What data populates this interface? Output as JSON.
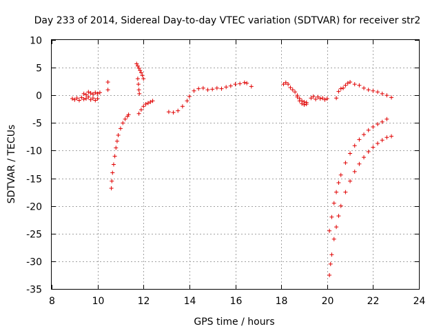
{
  "chart_data": {
    "type": "scatter",
    "title": "Day 233 of 2014, Sidereal Day-to-day VTEC variation (SDTVAR) for receiver str2",
    "xlabel": "GPS time / hours",
    "ylabel": "SDTVAR / TECUs",
    "xlim": [
      8,
      24
    ],
    "ylim": [
      -35,
      10
    ],
    "xticks": [
      8,
      10,
      12,
      14,
      16,
      18,
      20,
      22,
      24
    ],
    "yticks": [
      10,
      5,
      0,
      -5,
      -10,
      -15,
      -20,
      -25,
      -30,
      -35
    ],
    "grid": true,
    "marker": "plus",
    "color": "#e00000",
    "series": [
      {
        "name": "seg-a",
        "points": [
          [
            8.9,
            -0.6
          ],
          [
            9.0,
            -0.8
          ],
          [
            9.1,
            -0.5
          ],
          [
            9.2,
            -0.9
          ],
          [
            9.3,
            -0.4
          ],
          [
            9.4,
            -0.7
          ],
          [
            9.5,
            -0.6
          ],
          [
            9.6,
            -0.3
          ],
          [
            9.7,
            -0.8
          ],
          [
            9.8,
            -0.5
          ],
          [
            9.9,
            -0.9
          ],
          [
            10.0,
            -0.6
          ]
        ]
      },
      {
        "name": "seg-b",
        "points": [
          [
            9.4,
            0.3
          ],
          [
            9.5,
            0.1
          ],
          [
            9.6,
            0.6
          ],
          [
            9.7,
            0.4
          ],
          [
            9.8,
            0.2
          ],
          [
            9.9,
            0.5
          ],
          [
            10.0,
            0.3
          ],
          [
            10.1,
            0.5
          ]
        ]
      },
      {
        "name": "seg-c",
        "points": [
          [
            10.45,
            2.4
          ],
          [
            10.45,
            1.0
          ]
        ]
      },
      {
        "name": "seg-d",
        "points": [
          [
            10.6,
            -16.8
          ],
          [
            10.62,
            -15.5
          ],
          [
            10.65,
            -14.0
          ],
          [
            10.7,
            -12.5
          ],
          [
            10.75,
            -11.0
          ],
          [
            10.8,
            -9.5
          ],
          [
            10.85,
            -8.3
          ],
          [
            10.9,
            -7.2
          ],
          [
            11.0,
            -6.0
          ],
          [
            11.1,
            -5.0
          ],
          [
            11.2,
            -4.3
          ],
          [
            11.3,
            -3.8
          ],
          [
            11.35,
            -3.5
          ]
        ]
      },
      {
        "name": "seg-e",
        "points": [
          [
            11.7,
            5.7
          ],
          [
            11.75,
            5.3
          ],
          [
            11.8,
            4.9
          ],
          [
            11.85,
            4.5
          ],
          [
            11.9,
            4.1
          ],
          [
            11.95,
            3.6
          ],
          [
            12.0,
            3.0
          ]
        ]
      },
      {
        "name": "seg-f",
        "points": [
          [
            11.75,
            3.0
          ],
          [
            11.78,
            2.0
          ],
          [
            11.8,
            1.0
          ],
          [
            11.82,
            0.3
          ]
        ]
      },
      {
        "name": "seg-g",
        "points": [
          [
            11.8,
            -3.3
          ],
          [
            11.9,
            -2.6
          ],
          [
            12.0,
            -2.0
          ],
          [
            12.1,
            -1.6
          ],
          [
            12.2,
            -1.4
          ],
          [
            12.3,
            -1.2
          ],
          [
            12.4,
            -1.0
          ]
        ]
      },
      {
        "name": "seg-h",
        "points": [
          [
            13.1,
            -3.0
          ],
          [
            13.3,
            -3.1
          ],
          [
            13.5,
            -2.8
          ],
          [
            13.7,
            -2.0
          ],
          [
            13.9,
            -1.0
          ],
          [
            14.0,
            -0.2
          ],
          [
            14.2,
            0.8
          ],
          [
            14.4,
            1.2
          ],
          [
            14.6,
            1.3
          ],
          [
            14.8,
            1.0
          ],
          [
            15.0,
            1.1
          ],
          [
            15.2,
            1.3
          ],
          [
            15.4,
            1.2
          ],
          [
            15.6,
            1.5
          ],
          [
            15.8,
            1.7
          ],
          [
            16.0,
            2.0
          ],
          [
            16.2,
            2.1
          ],
          [
            16.4,
            2.3
          ],
          [
            16.5,
            2.2
          ],
          [
            16.7,
            1.6
          ]
        ]
      },
      {
        "name": "seg-i",
        "points": [
          [
            18.1,
            2.0
          ],
          [
            18.2,
            2.3
          ],
          [
            18.3,
            2.0
          ],
          [
            18.4,
            1.4
          ],
          [
            18.5,
            1.0
          ],
          [
            18.6,
            0.6
          ],
          [
            18.7,
            0.0
          ],
          [
            18.8,
            -0.6
          ],
          [
            18.9,
            -1.0
          ],
          [
            19.0,
            -1.2
          ],
          [
            19.1,
            -1.3
          ]
        ]
      },
      {
        "name": "seg-j",
        "points": [
          [
            18.7,
            -0.3
          ],
          [
            18.8,
            -1.0
          ],
          [
            18.9,
            -1.5
          ],
          [
            19.0,
            -1.7
          ],
          [
            19.1,
            -1.6
          ]
        ]
      },
      {
        "name": "seg-k",
        "points": [
          [
            19.3,
            -0.5
          ],
          [
            19.4,
            -0.2
          ],
          [
            19.5,
            -0.7
          ],
          [
            19.6,
            -0.3
          ],
          [
            19.7,
            -0.6
          ],
          [
            19.8,
            -0.5
          ],
          [
            19.9,
            -0.8
          ],
          [
            20.0,
            -0.6
          ]
        ]
      },
      {
        "name": "seg-l",
        "points": [
          [
            20.4,
            -0.5
          ],
          [
            20.5,
            0.7
          ],
          [
            20.6,
            1.2
          ],
          [
            20.7,
            1.3
          ],
          [
            20.8,
            1.8
          ],
          [
            20.9,
            2.2
          ],
          [
            21.0,
            2.4
          ],
          [
            21.2,
            2.0
          ],
          [
            21.4,
            1.8
          ],
          [
            21.6,
            1.3
          ],
          [
            21.8,
            1.0
          ],
          [
            22.0,
            0.8
          ],
          [
            22.2,
            0.6
          ],
          [
            22.4,
            0.3
          ],
          [
            22.6,
            0.0
          ],
          [
            22.8,
            -0.4
          ]
        ]
      },
      {
        "name": "seg-m",
        "points": [
          [
            20.1,
            -24.5
          ],
          [
            20.2,
            -22.0
          ],
          [
            20.3,
            -19.5
          ],
          [
            20.4,
            -17.5
          ],
          [
            20.5,
            -15.8
          ],
          [
            20.6,
            -14.4
          ],
          [
            20.8,
            -12.2
          ],
          [
            21.0,
            -10.5
          ],
          [
            21.2,
            -9.1
          ],
          [
            21.4,
            -8.0
          ],
          [
            21.6,
            -7.1
          ],
          [
            21.8,
            -6.3
          ],
          [
            22.0,
            -5.7
          ],
          [
            22.2,
            -5.2
          ],
          [
            22.4,
            -4.8
          ],
          [
            22.6,
            -4.3
          ]
        ]
      },
      {
        "name": "seg-n",
        "points": [
          [
            20.1,
            -32.5
          ],
          [
            20.15,
            -30.5
          ],
          [
            20.2,
            -28.8
          ],
          [
            20.3,
            -26.0
          ],
          [
            20.4,
            -23.8
          ],
          [
            20.5,
            -21.8
          ],
          [
            20.6,
            -20.0
          ],
          [
            20.8,
            -17.5
          ],
          [
            21.0,
            -15.5
          ],
          [
            21.2,
            -13.8
          ],
          [
            21.4,
            -12.4
          ],
          [
            21.6,
            -11.2
          ],
          [
            21.8,
            -10.2
          ],
          [
            22.0,
            -9.4
          ],
          [
            22.2,
            -8.7
          ],
          [
            22.4,
            -8.1
          ],
          [
            22.6,
            -7.6
          ],
          [
            22.8,
            -7.4
          ]
        ]
      }
    ]
  }
}
